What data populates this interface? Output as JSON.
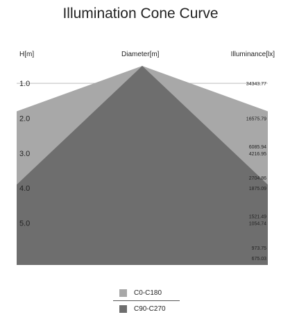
{
  "chart_data": {
    "type": "area",
    "title": "Illumination Cone Curve",
    "headers": {
      "height": "H[m]",
      "diameter": "Diameter[m]",
      "illuminance": "Illuminance[lx]"
    },
    "height_ticks": [
      "1.0",
      "2.0",
      "3.0",
      "4.0",
      "5.0"
    ],
    "height_range": [
      0.5,
      6.2
    ],
    "series": [
      {
        "name": "C0-C180",
        "color": "#a8a8a8",
        "cone_edge_height": 1.8
      },
      {
        "name": "C90-C270",
        "color": "#6e6e6e",
        "cone_edge_height": 3.9
      }
    ],
    "illuminance_labels": [
      {
        "text": "34343.77",
        "h": 1.0
      },
      {
        "text": "16575.79",
        "h": 2.0
      },
      {
        "text": "6085.94",
        "h": 2.8
      },
      {
        "text": "4216.95",
        "h": 3.0
      },
      {
        "text": "2704.86",
        "h": 3.7
      },
      {
        "text": "1875.09",
        "h": 4.0
      },
      {
        "text": "1521.49",
        "h": 4.8
      },
      {
        "text": "1054.74",
        "h": 5.0
      },
      {
        "text": "973.75",
        "h": 5.7
      },
      {
        "text": "675.03",
        "h": 6.0
      }
    ],
    "grid": true
  },
  "colors": {
    "background": "#ffffff",
    "grid_line": "#bdbdbd",
    "text": "#222222"
  }
}
